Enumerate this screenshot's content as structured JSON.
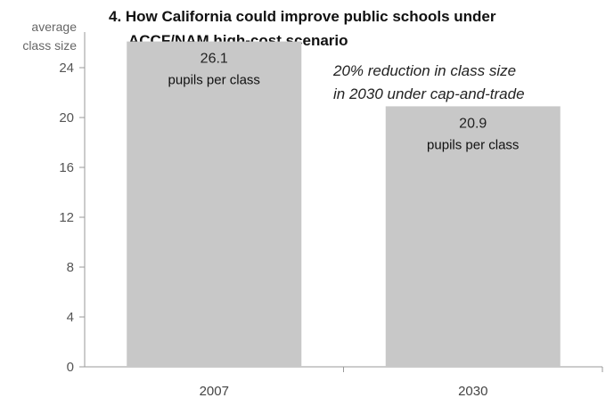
{
  "chart_data": {
    "type": "bar",
    "title_lines": [
      "4. How California could improve public schools under",
      "ACCF/NAM high-cost scenario"
    ],
    "ylabel_lines": [
      "average",
      "class size"
    ],
    "xlabel": "",
    "categories": [
      "2007",
      "2030"
    ],
    "values": [
      26.1,
      20.9
    ],
    "value_labels": [
      "26.1",
      "20.9"
    ],
    "unit_label": "pupils per class",
    "annotation_lines": [
      "20% reduction in class size",
      "in 2030 under cap-and-trade"
    ],
    "ylim": [
      0,
      28
    ],
    "yticks": [
      0,
      4,
      8,
      12,
      16,
      20,
      24
    ],
    "grid": false,
    "bar_color": "#c8c8c8",
    "axis_color": "#999999"
  }
}
